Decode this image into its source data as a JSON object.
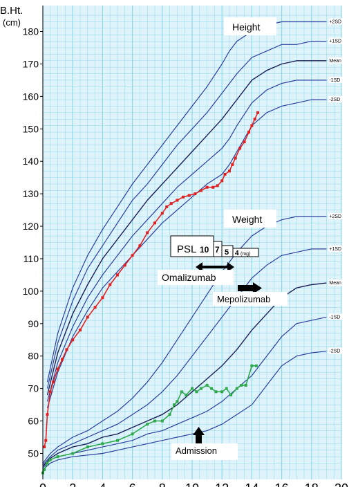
{
  "chart_data": {
    "type": "line",
    "ylabel": "B.Ht.",
    "yunit": "(cm)",
    "xlim": [
      0,
      20
    ],
    "ylim": [
      42,
      188
    ],
    "x_ticks": [
      0,
      2,
      4,
      6,
      8,
      10,
      12,
      14,
      16,
      18,
      20
    ],
    "y_ticks": [
      50,
      60,
      70,
      80,
      90,
      100,
      110,
      120,
      130,
      140,
      150,
      160,
      170,
      180
    ],
    "grid": true,
    "colors": {
      "grid": "#8fd8e8",
      "background": "#dff3fb",
      "curve": "#2b3f9e",
      "mean": "#1a1f55",
      "height": "#e02020",
      "weight": "#2ea84a"
    },
    "labels": {
      "height": "Height",
      "weight": "Weight",
      "psl": "PSL",
      "psl_doses": [
        "10",
        "7",
        "5",
        "4"
      ],
      "psl_unit": "(mg)",
      "omalizumab": "Omalizumab",
      "mepolizumab": "Mepolizumab",
      "admission": "Admission"
    },
    "series": [
      {
        "name": "+2SD",
        "group": "height",
        "x": [
          0.3,
          1,
          2,
          3,
          4,
          5,
          6,
          7,
          8,
          9,
          10,
          11,
          12,
          12.5,
          13,
          14,
          15,
          16,
          17,
          18,
          19
        ],
        "y": [
          72,
          87,
          101,
          111,
          119,
          126,
          133,
          139,
          145,
          151,
          157,
          163,
          170,
          174,
          177,
          180,
          182,
          183,
          183,
          183,
          183
        ]
      },
      {
        "name": "+1SD",
        "group": "height",
        "x": [
          0.3,
          1,
          2,
          3,
          4,
          5,
          6,
          7,
          8,
          9,
          10,
          11,
          12,
          12.5,
          13,
          14,
          15,
          16,
          17,
          18,
          19
        ],
        "y": [
          70,
          84,
          97,
          107,
          114,
          121,
          128,
          133,
          139,
          145,
          150,
          155,
          161,
          164,
          167,
          172,
          174,
          176,
          176,
          177,
          177
        ]
      },
      {
        "name": "Mean",
        "group": "height",
        "x": [
          0.3,
          1,
          2,
          3,
          4,
          5,
          6,
          7,
          8,
          9,
          10,
          11,
          12,
          12.5,
          13,
          14,
          15,
          16,
          17,
          18,
          19
        ],
        "y": [
          68,
          81,
          93,
          102,
          110,
          116,
          122,
          128,
          133,
          138,
          143,
          148,
          153,
          156,
          159,
          165,
          168,
          170,
          171,
          171,
          171
        ]
      },
      {
        "name": "-1SD",
        "group": "height",
        "x": [
          0.3,
          1,
          2,
          3,
          4,
          5,
          6,
          7,
          8,
          9,
          10,
          11,
          12,
          12.5,
          13,
          14,
          15,
          16,
          17,
          18,
          19
        ],
        "y": [
          66,
          78,
          89,
          98,
          105,
          111,
          117,
          122,
          127,
          132,
          136,
          140,
          144,
          147,
          151,
          158,
          162,
          164,
          165,
          165,
          165
        ]
      },
      {
        "name": "-2SD",
        "group": "height",
        "x": [
          0.3,
          1,
          2,
          3,
          4,
          5,
          6,
          7,
          8,
          9,
          10,
          11,
          12,
          12.5,
          13,
          14,
          15,
          16,
          17,
          18,
          19
        ],
        "y": [
          64,
          75,
          86,
          94,
          101,
          106,
          111,
          116,
          121,
          125,
          129,
          133,
          136,
          139,
          143,
          151,
          155,
          157,
          158,
          159,
          159
        ]
      },
      {
        "name": "+2SD",
        "group": "weight",
        "x": [
          0,
          0.5,
          1,
          2,
          3,
          4,
          5,
          6,
          7,
          8,
          9,
          10,
          11,
          12,
          13,
          14,
          15,
          16,
          17,
          18,
          19
        ],
        "y": [
          47,
          50,
          52,
          55,
          57,
          60,
          63,
          67,
          72,
          78,
          85,
          92,
          99,
          106,
          112,
          117,
          120,
          122,
          123,
          123,
          123
        ]
      },
      {
        "name": "+1SD",
        "group": "weight",
        "x": [
          0,
          0.5,
          1,
          2,
          3,
          4,
          5,
          6,
          7,
          8,
          9,
          10,
          11,
          12,
          13,
          14,
          15,
          16,
          17,
          18,
          19
        ],
        "y": [
          46.5,
          49,
          51,
          53,
          55,
          57,
          59,
          62,
          65,
          69,
          74,
          80,
          86,
          92,
          98,
          104,
          108,
          111,
          112,
          113,
          113
        ]
      },
      {
        "name": "Mean",
        "group": "weight",
        "x": [
          0,
          0.5,
          1,
          2,
          3,
          4,
          5,
          6,
          7,
          8,
          9,
          10,
          11,
          12,
          13,
          14,
          15,
          16,
          17,
          18,
          19
        ],
        "y": [
          46,
          48.5,
          50,
          52,
          53,
          55,
          56,
          58,
          60,
          62,
          65,
          69,
          73,
          77,
          82,
          88,
          93,
          98,
          101,
          102,
          102.5
        ]
      },
      {
        "name": "-1SD",
        "group": "weight",
        "x": [
          0,
          0.5,
          1,
          2,
          3,
          4,
          5,
          6,
          7,
          8,
          9,
          10,
          11,
          12,
          13,
          14,
          15,
          16,
          17,
          18,
          19
        ],
        "y": [
          45.5,
          48,
          49,
          50,
          51,
          52,
          53,
          54,
          56,
          57,
          59,
          61,
          63,
          66,
          70,
          74,
          80,
          86,
          90,
          91,
          92
        ]
      },
      {
        "name": "-2SD",
        "group": "weight",
        "x": [
          0,
          0.5,
          1,
          2,
          3,
          4,
          5,
          6,
          7,
          8,
          9,
          10,
          11,
          12,
          13,
          14,
          15,
          16,
          17,
          18,
          19
        ],
        "y": [
          45,
          47,
          48,
          49,
          49.5,
          50,
          51,
          52,
          53,
          54,
          55,
          56,
          57,
          59,
          62,
          65,
          71,
          77,
          80,
          81,
          81.5
        ]
      },
      {
        "group": "height-patient",
        "x": [
          0.1,
          0.2,
          0.3,
          0.5,
          0.7,
          1,
          1.3,
          1.6,
          2,
          2.5,
          3,
          3.5,
          4,
          4.5,
          5,
          5.5,
          6,
          6.5,
          7,
          7.5,
          8,
          8.3,
          8.6,
          9,
          9.4,
          9.8,
          10.2,
          10.6,
          11,
          11.4,
          11.7,
          12,
          12.2,
          12.5,
          12.7,
          12.9,
          13.2,
          13.5,
          13.8,
          14,
          14.2,
          14.4
        ],
        "y": [
          52,
          54,
          62,
          69,
          72,
          76,
          79,
          82,
          85,
          88,
          92,
          95,
          98,
          102,
          105,
          108,
          111,
          114,
          118,
          121,
          124,
          126,
          127,
          128,
          129,
          129.5,
          130,
          131,
          132,
          132,
          132.5,
          134,
          136,
          137,
          139,
          141,
          144,
          146,
          149,
          151,
          153,
          155
        ]
      },
      {
        "group": "weight-patient",
        "x": [
          0,
          0.1,
          0.3,
          0.5,
          1,
          2,
          3,
          4,
          5,
          6,
          7,
          7.5,
          8,
          8.5,
          8.8,
          9,
          9.3,
          9.6,
          10,
          10.3,
          10.6,
          11,
          11.3,
          11.6,
          12,
          12.3,
          12.6,
          13,
          13.3,
          13.6,
          14,
          14.3
        ],
        "y": [
          44,
          45,
          47,
          48,
          49,
          50,
          52,
          53,
          54,
          56,
          59,
          60,
          60,
          62,
          65,
          66,
          69,
          68,
          70,
          69,
          70,
          71,
          70,
          69,
          69,
          70,
          68,
          70,
          71,
          71,
          77,
          77
        ]
      }
    ]
  }
}
